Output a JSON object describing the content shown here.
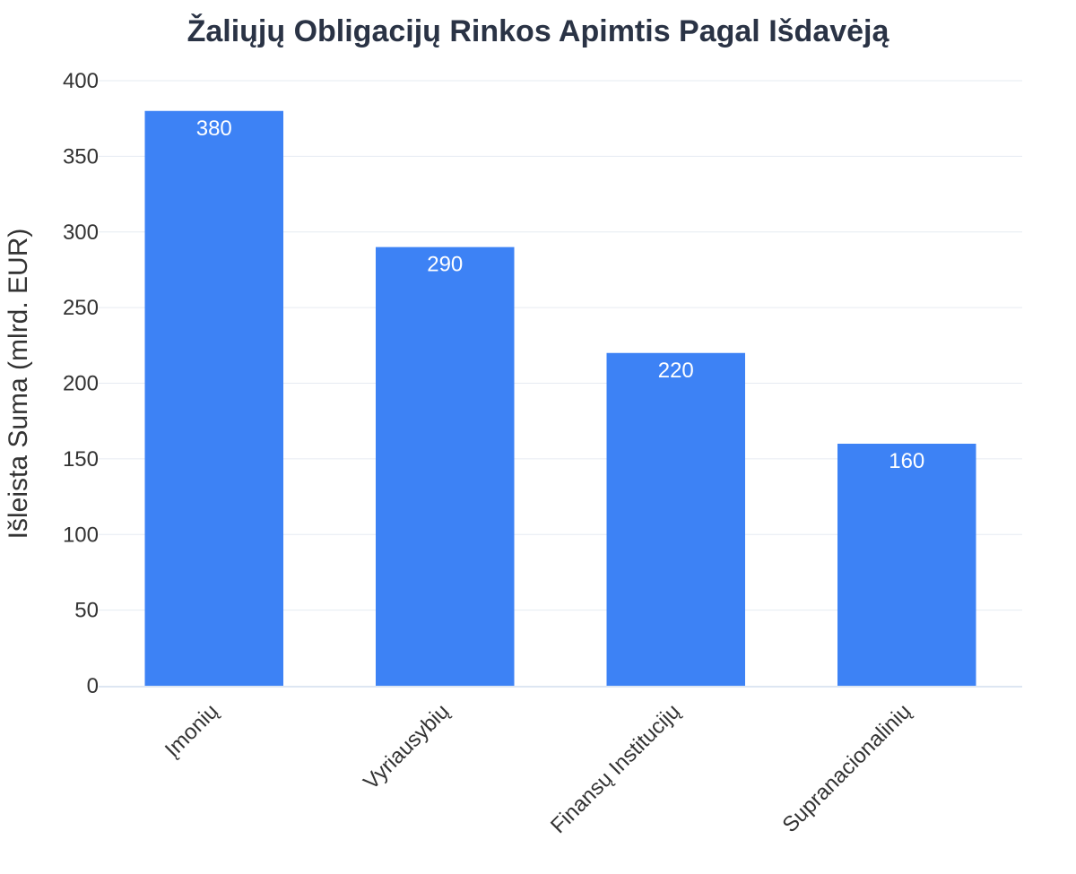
{
  "chart_data": {
    "type": "bar",
    "title": "Žaliųjų Obligacijų Rinkos Apimtis Pagal Išdavėją",
    "xlabel": "",
    "ylabel": "Išleista Suma (mlrd. EUR)",
    "categories": [
      "Įmonių",
      "Vyriausybių",
      "Finansų Institucijų",
      "Supranacionalinių"
    ],
    "values": [
      380,
      290,
      220,
      160
    ],
    "ylim": [
      0,
      400
    ],
    "yticks": [
      0,
      50,
      100,
      150,
      200,
      250,
      300,
      350,
      400
    ],
    "grid": true,
    "legend": "none",
    "bar_color": "#3d82f5"
  }
}
